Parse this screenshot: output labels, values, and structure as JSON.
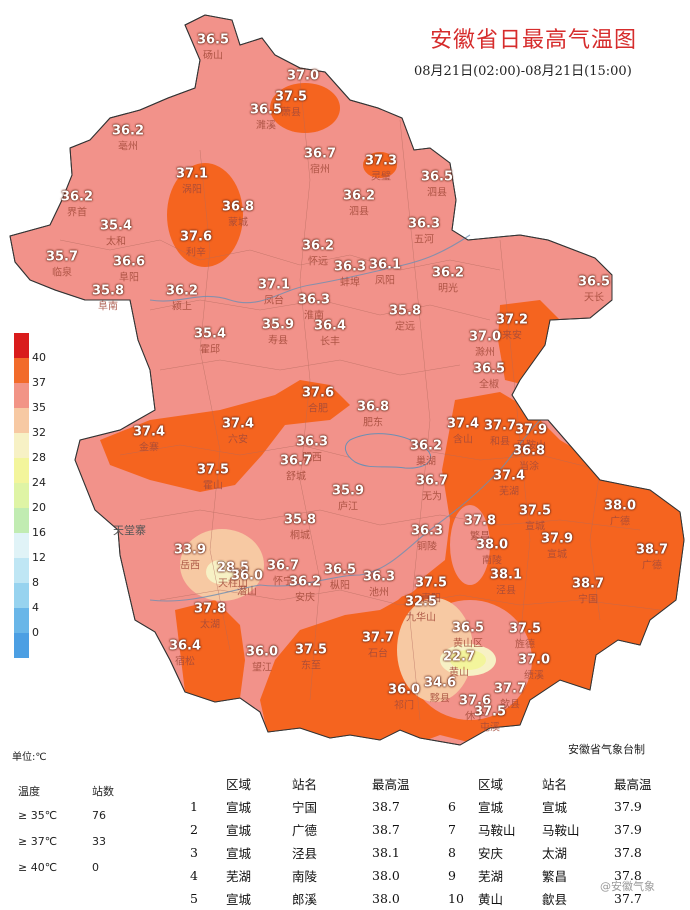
{
  "title": "安徽省日最高气温图",
  "subtitle": "08月21日(02:00)-08月21日(15:00)",
  "agency": "安徽省气象台制",
  "unit_label": "单位:℃",
  "watermark": "@安徽气象",
  "legend": {
    "ticks": [
      "40",
      "37",
      "35",
      "32",
      "28",
      "24",
      "20",
      "16",
      "12",
      "8",
      "4",
      "0"
    ],
    "colors": [
      "#d91c1c",
      "#f26b2a",
      "#f29486",
      "#f7c9a3",
      "#f7f1c5",
      "#f3f59c",
      "#dff4a5",
      "#c1ecb2",
      "#e0f3f7",
      "#bfe6f4",
      "#97d3ef",
      "#69b6e8",
      "#4c9fe3"
    ]
  },
  "map_label": "天堂寨",
  "stations": [
    {
      "v": "36.5",
      "name": "砀山"
    },
    {
      "v": "37.0",
      "name": ""
    },
    {
      "v": "37.5",
      "name": "萧县"
    },
    {
      "v": "36.5",
      "name": "濉溪"
    },
    {
      "v": "36.2",
      "name": "亳州"
    },
    {
      "v": "36.7",
      "name": "宿州"
    },
    {
      "v": "37.3",
      "name": "灵璧"
    },
    {
      "v": "37.1",
      "name": "涡阳"
    },
    {
      "v": "36.2",
      "name": "界首"
    },
    {
      "v": "36.8",
      "name": "蒙城"
    },
    {
      "v": "36.2",
      "name": "泗县"
    },
    {
      "v": "36.5",
      "name": "泗县"
    },
    {
      "v": "35.4",
      "name": "太和"
    },
    {
      "v": "37.6",
      "name": "利辛"
    },
    {
      "v": "36.3",
      "name": "五河"
    },
    {
      "v": "35.7",
      "name": "临泉"
    },
    {
      "v": "36.6",
      "name": "阜阳"
    },
    {
      "v": "36.2",
      "name": "怀远"
    },
    {
      "v": "36.3",
      "name": "蚌埠"
    },
    {
      "v": "36.1",
      "name": "凤阳"
    },
    {
      "v": "36.2",
      "name": "明光"
    },
    {
      "v": "36.5",
      "name": "天长"
    },
    {
      "v": "35.8",
      "name": "阜南"
    },
    {
      "v": "36.2",
      "name": "颍上"
    },
    {
      "v": "37.1",
      "name": "凤台"
    },
    {
      "v": "36.3",
      "name": "淮南"
    },
    {
      "v": "35.8",
      "name": "定远"
    },
    {
      "v": "37.2",
      "name": "来安"
    },
    {
      "v": "35.9",
      "name": "寿县"
    },
    {
      "v": "36.4",
      "name": "长丰"
    },
    {
      "v": "35.4",
      "name": "霍邱"
    },
    {
      "v": "37.0",
      "name": "滁州"
    },
    {
      "v": "36.5",
      "name": "全椒"
    },
    {
      "v": "37.6",
      "name": "合肥"
    },
    {
      "v": "36.8",
      "name": "肥东"
    },
    {
      "v": "37.4",
      "name": "含山"
    },
    {
      "v": "37.7",
      "name": "和县"
    },
    {
      "v": "37.9",
      "name": "马鞍山"
    },
    {
      "v": "37.4",
      "name": "金寨"
    },
    {
      "v": "37.4",
      "name": "六安"
    },
    {
      "v": "36.3",
      "name": "肥西"
    },
    {
      "v": "36.2",
      "name": "巢湖"
    },
    {
      "v": "36.8",
      "name": "当涂"
    },
    {
      "v": "36.7",
      "name": "舒城"
    },
    {
      "v": "37.5",
      "name": "霍山"
    },
    {
      "v": "36.7",
      "name": "无为"
    },
    {
      "v": "37.4",
      "name": "芜湖"
    },
    {
      "v": "35.9",
      "name": "庐江"
    },
    {
      "v": "38.0",
      "name": "广德"
    },
    {
      "v": "37.5",
      "name": "宣城"
    },
    {
      "v": "35.8",
      "name": "桐城"
    },
    {
      "v": "37.8",
      "name": "繁昌"
    },
    {
      "v": "36.3",
      "name": "铜陵"
    },
    {
      "v": "37.9",
      "name": "宣城"
    },
    {
      "v": "38.7",
      "name": "广德"
    },
    {
      "v": "33.9",
      "name": "岳西"
    },
    {
      "v": "38.0",
      "name": "南陵"
    },
    {
      "v": "28.5",
      "name": "天柱山"
    },
    {
      "v": "36.0",
      "name": "潜山"
    },
    {
      "v": "36.7",
      "name": "怀宁"
    },
    {
      "v": "36.5",
      "name": "枞阳"
    },
    {
      "v": "36.3",
      "name": "池州"
    },
    {
      "v": "36.2",
      "name": "安庆"
    },
    {
      "v": "38.1",
      "name": "泾县"
    },
    {
      "v": "38.7",
      "name": "宁国"
    },
    {
      "v": "37.5",
      "name": "青阳"
    },
    {
      "v": "32.5",
      "name": "九华山"
    },
    {
      "v": "37.8",
      "name": "太湖"
    },
    {
      "v": "36.5",
      "name": "黄山区"
    },
    {
      "v": "37.5",
      "name": "旌德"
    },
    {
      "v": "36.4",
      "name": "宿松"
    },
    {
      "v": "37.7",
      "name": "石台"
    },
    {
      "v": "36.0",
      "name": "望江"
    },
    {
      "v": "37.5",
      "name": "东至"
    },
    {
      "v": "22.7",
      "name": "黄山"
    },
    {
      "v": "37.0",
      "name": "绩溪"
    },
    {
      "v": "36.0",
      "name": "祁门"
    },
    {
      "v": "34.6",
      "name": "黟县"
    },
    {
      "v": "37.7",
      "name": "歙县"
    },
    {
      "v": "37.6",
      "name": "休宁"
    },
    {
      "v": "37.5",
      "name": "屯溪"
    }
  ],
  "stats": {
    "headers": [
      "温度",
      "站数"
    ],
    "rows": [
      {
        "range": "≥ 35℃",
        "count": "76"
      },
      {
        "range": "≥ 37℃",
        "count": "33"
      },
      {
        "range": "≥ 40℃",
        "count": "0"
      }
    ]
  },
  "ranking": {
    "headers": [
      "区域",
      "站名",
      "最高温"
    ],
    "left": [
      {
        "no": "1",
        "region": "宣城",
        "station": "宁国",
        "temp": "38.7"
      },
      {
        "no": "2",
        "region": "宣城",
        "station": "广德",
        "temp": "38.7"
      },
      {
        "no": "3",
        "region": "宣城",
        "station": "泾县",
        "temp": "38.1"
      },
      {
        "no": "4",
        "region": "芜湖",
        "station": "南陵",
        "temp": "38.0"
      },
      {
        "no": "5",
        "region": "宣城",
        "station": "郎溪",
        "temp": "38.0"
      }
    ],
    "right": [
      {
        "no": "6",
        "region": "宣城",
        "station": "宣城",
        "temp": "37.9"
      },
      {
        "no": "7",
        "region": "马鞍山",
        "station": "马鞍山",
        "temp": "37.9"
      },
      {
        "no": "8",
        "region": "安庆",
        "station": "太湖",
        "temp": "37.8"
      },
      {
        "no": "9",
        "region": "芜湖",
        "station": "繁昌",
        "temp": "37.8"
      },
      {
        "no": "10",
        "region": "黄山",
        "station": "歙县",
        "temp": "37.7"
      }
    ]
  }
}
